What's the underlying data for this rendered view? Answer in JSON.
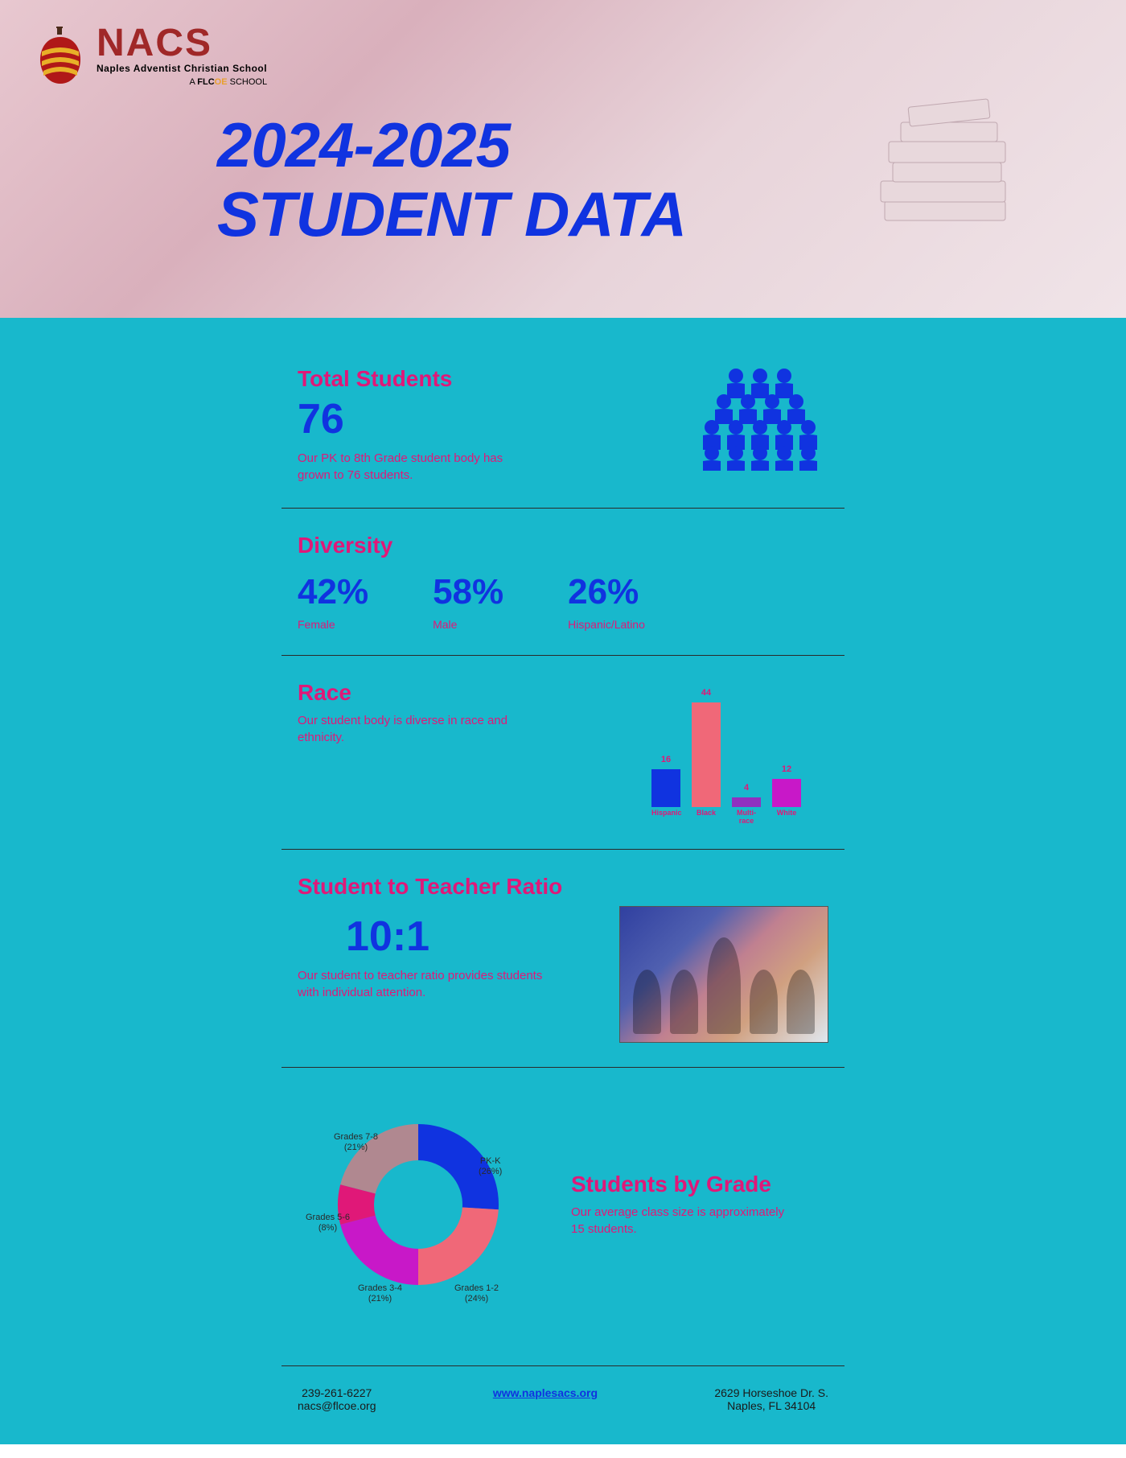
{
  "colors": {
    "blue": "#1033e0",
    "pink": "#e01878",
    "teal": "#18b8cc",
    "magenta": "#c818c8",
    "purple": "#9030c0",
    "mauve": "#b08890",
    "salmon": "#f06878"
  },
  "logo": {
    "acronym": "NACS",
    "fullname": "Naples Adventist Christian School",
    "subline_pre": "A ",
    "subline_flc": "FLC",
    "subline_highlight": "OE",
    "subline_post": " SCHOOL"
  },
  "header": {
    "title_line1": "2024-2025",
    "title_line2": "STUDENT DATA"
  },
  "total": {
    "title": "Total Students",
    "value": "76",
    "desc": "Our PK to 8th Grade student body has grown to 76 students."
  },
  "diversity": {
    "title": "Diversity",
    "stats": [
      {
        "pct": "42%",
        "label": "Female"
      },
      {
        "pct": "58%",
        "label": "Male"
      },
      {
        "pct": "26%",
        "label": "Hispanic/Latino"
      }
    ]
  },
  "race": {
    "title": "Race",
    "desc": "Our student body is diverse in race and ethnicity.",
    "chart": {
      "type": "bar",
      "max": 44,
      "bars": [
        {
          "label": "Hispanic",
          "value": 16,
          "color": "#1033e0"
        },
        {
          "label": "Black",
          "value": 44,
          "color": "#f06878"
        },
        {
          "label": "Multi-race",
          "value": 4,
          "color": "#9030c0"
        },
        {
          "label": "White",
          "value": 12,
          "color": "#c818c8"
        }
      ]
    }
  },
  "ratio": {
    "title": "Student to Teacher Ratio",
    "value": "10:1",
    "desc": "Our student to teacher ratio provides students with individual attention."
  },
  "grades": {
    "title": "Students by Grade",
    "desc": "Our average class size is approximately 15 students.",
    "chart": {
      "type": "donut",
      "inner_radius": 55,
      "outer_radius": 100,
      "slices": [
        {
          "label": "PK-K",
          "pct_label": "(26%)",
          "value": 26,
          "color": "#1033e0"
        },
        {
          "label": "Grades 1-2",
          "pct_label": "(24%)",
          "value": 24,
          "color": "#f06878"
        },
        {
          "label": "Grades 3-4",
          "pct_label": "(21%)",
          "value": 21,
          "color": "#c818c8"
        },
        {
          "label": "Grades 5-6",
          "pct_label": "(8%)",
          "value": 8,
          "color": "#e01878"
        },
        {
          "label": "Grades 7-8",
          "pct_label": "(21%)",
          "value": 21,
          "color": "#b08890"
        }
      ]
    }
  },
  "footer": {
    "phone": "239-261-6227",
    "email": "nacs@flcoe.org",
    "website": "www.naplesacs.org",
    "address1": "2629 Horseshoe Dr. S.",
    "address2": "Naples, FL 34104"
  }
}
